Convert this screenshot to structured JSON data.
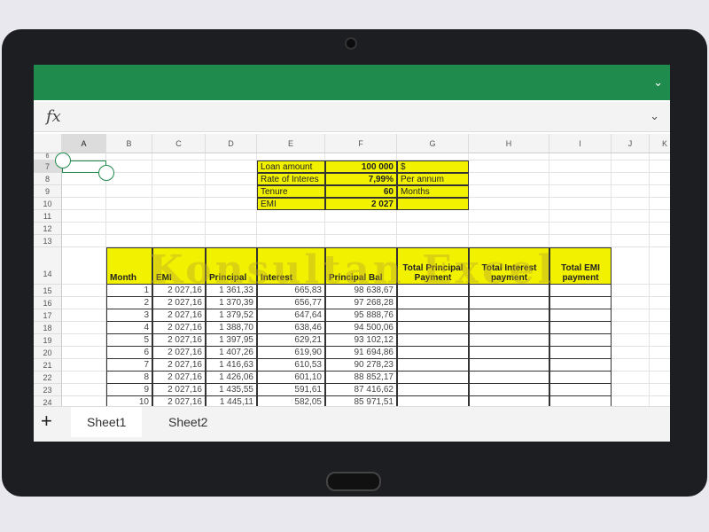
{
  "formula_bar": {
    "fx_label": "fx"
  },
  "columns": [
    "A",
    "B",
    "C",
    "D",
    "E",
    "F",
    "G",
    "H",
    "I",
    "J",
    "K"
  ],
  "rows": [
    "6",
    "7",
    "8",
    "9",
    "10",
    "11",
    "12",
    "13",
    "14",
    "15",
    "16",
    "17",
    "18",
    "19",
    "20",
    "21",
    "22",
    "23",
    "24"
  ],
  "inputs": [
    {
      "label": "Loan amount",
      "value": "100 000",
      "unit": "$"
    },
    {
      "label": "Rate of Interes",
      "value": "7,99%",
      "unit": "Per annum"
    },
    {
      "label": "Tenure",
      "value": "60",
      "unit": "Months"
    },
    {
      "label": "EMI",
      "value": "2 027",
      "unit": ""
    }
  ],
  "table": {
    "headers": [
      "Month",
      "EMI",
      "Principal",
      "Interest",
      "Principal Bal",
      "Total Principal Payment",
      "Total Interest payment",
      "Total EMI payment"
    ],
    "rows": [
      [
        "1",
        "2 027,16",
        "1 361,33",
        "665,83",
        "98 638,67"
      ],
      [
        "2",
        "2 027,16",
        "1 370,39",
        "656,77",
        "97 268,28"
      ],
      [
        "3",
        "2 027,16",
        "1 379,52",
        "647,64",
        "95 888,76"
      ],
      [
        "4",
        "2 027,16",
        "1 388,70",
        "638,46",
        "94 500,06"
      ],
      [
        "5",
        "2 027,16",
        "1 397,95",
        "629,21",
        "93 102,12"
      ],
      [
        "6",
        "2 027,16",
        "1 407,26",
        "619,90",
        "91 694,86"
      ],
      [
        "7",
        "2 027,16",
        "1 416,63",
        "610,53",
        "90 278,23"
      ],
      [
        "8",
        "2 027,16",
        "1 426,06",
        "601,10",
        "88 852,17"
      ],
      [
        "9",
        "2 027,16",
        "1 435,55",
        "591,61",
        "87 416,62"
      ],
      [
        "10",
        "2 027,16",
        "1 445,11",
        "582,05",
        "85 971,51"
      ]
    ]
  },
  "watermark": "Konsultan Excel",
  "sheet_tabs": {
    "add_label": "+",
    "tabs": [
      "Sheet1",
      "Sheet2"
    ],
    "active": "Sheet1"
  },
  "colors": {
    "ribbon": "#1f8b4d",
    "highlight": "#f2f200"
  }
}
